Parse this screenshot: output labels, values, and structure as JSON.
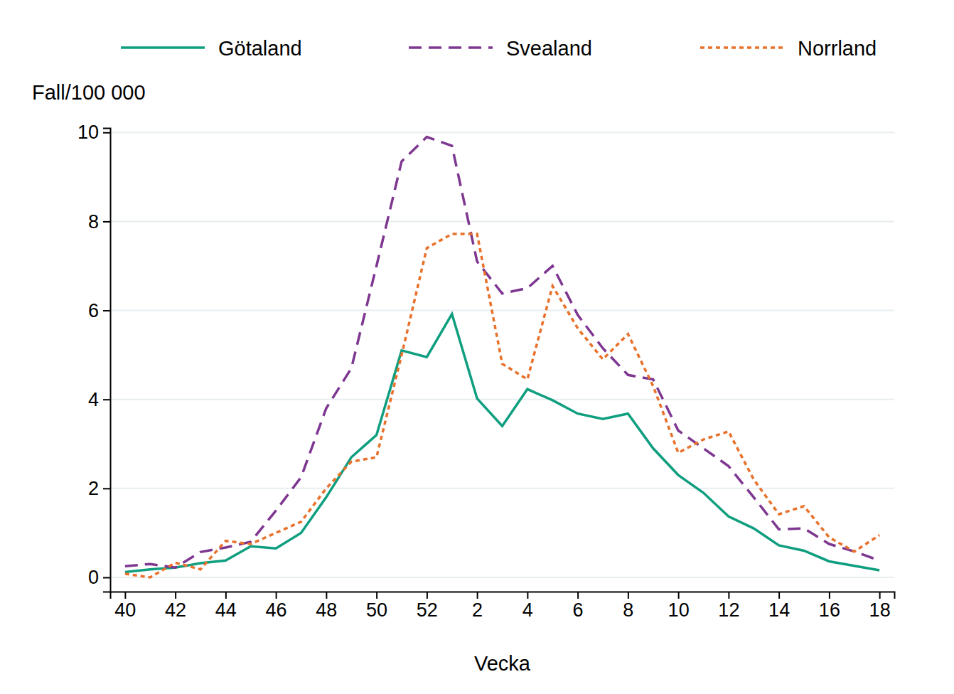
{
  "chart_data": {
    "type": "line",
    "x_label": "Vecka",
    "y_label": "Fall/100 000",
    "categories": [
      40,
      null,
      42,
      null,
      44,
      null,
      46,
      null,
      48,
      null,
      50,
      null,
      52,
      null,
      2,
      null,
      4,
      null,
      6,
      null,
      8,
      null,
      10,
      null,
      12,
      null,
      14,
      null,
      16,
      null,
      18
    ],
    "series": [
      {
        "name": "Götaland",
        "color": "#0f9e7f",
        "line_style": "solid",
        "values": [
          0.12,
          0.18,
          0.22,
          0.32,
          0.38,
          0.7,
          0.65,
          1.0,
          1.8,
          2.7,
          3.2,
          5.1,
          4.95,
          5.92,
          4.02,
          3.4,
          4.23,
          3.98,
          3.68,
          3.56,
          3.68,
          2.9,
          2.3,
          1.9,
          1.37,
          1.1,
          0.72,
          0.6,
          0.36,
          0.26,
          0.16
        ]
      },
      {
        "name": "Svealand",
        "color": "#7e3791",
        "line_style": "dashed",
        "values": [
          0.25,
          0.3,
          0.22,
          0.57,
          0.67,
          0.8,
          1.5,
          2.25,
          3.8,
          4.7,
          7.0,
          9.35,
          9.9,
          9.7,
          7.1,
          6.38,
          6.5,
          7.0,
          5.9,
          5.15,
          4.55,
          4.45,
          3.3,
          2.9,
          2.5,
          1.8,
          1.08,
          1.1,
          0.75,
          0.58,
          0.38
        ]
      },
      {
        "name": "Norrland",
        "color": "#e8712b",
        "line_style": "dotted",
        "values": [
          0.08,
          0.0,
          0.33,
          0.18,
          0.82,
          0.75,
          1.0,
          1.25,
          2.0,
          2.6,
          2.7,
          5.0,
          7.4,
          7.72,
          7.72,
          4.8,
          4.45,
          6.55,
          5.6,
          4.9,
          5.47,
          4.3,
          2.8,
          3.1,
          3.28,
          2.2,
          1.42,
          1.6,
          0.9,
          0.58,
          0.95
        ]
      }
    ],
    "ylim": [
      -0.32,
      10.1
    ],
    "yticks": [
      0,
      2,
      4,
      6,
      8,
      10
    ],
    "grid": true,
    "legend": "top"
  }
}
